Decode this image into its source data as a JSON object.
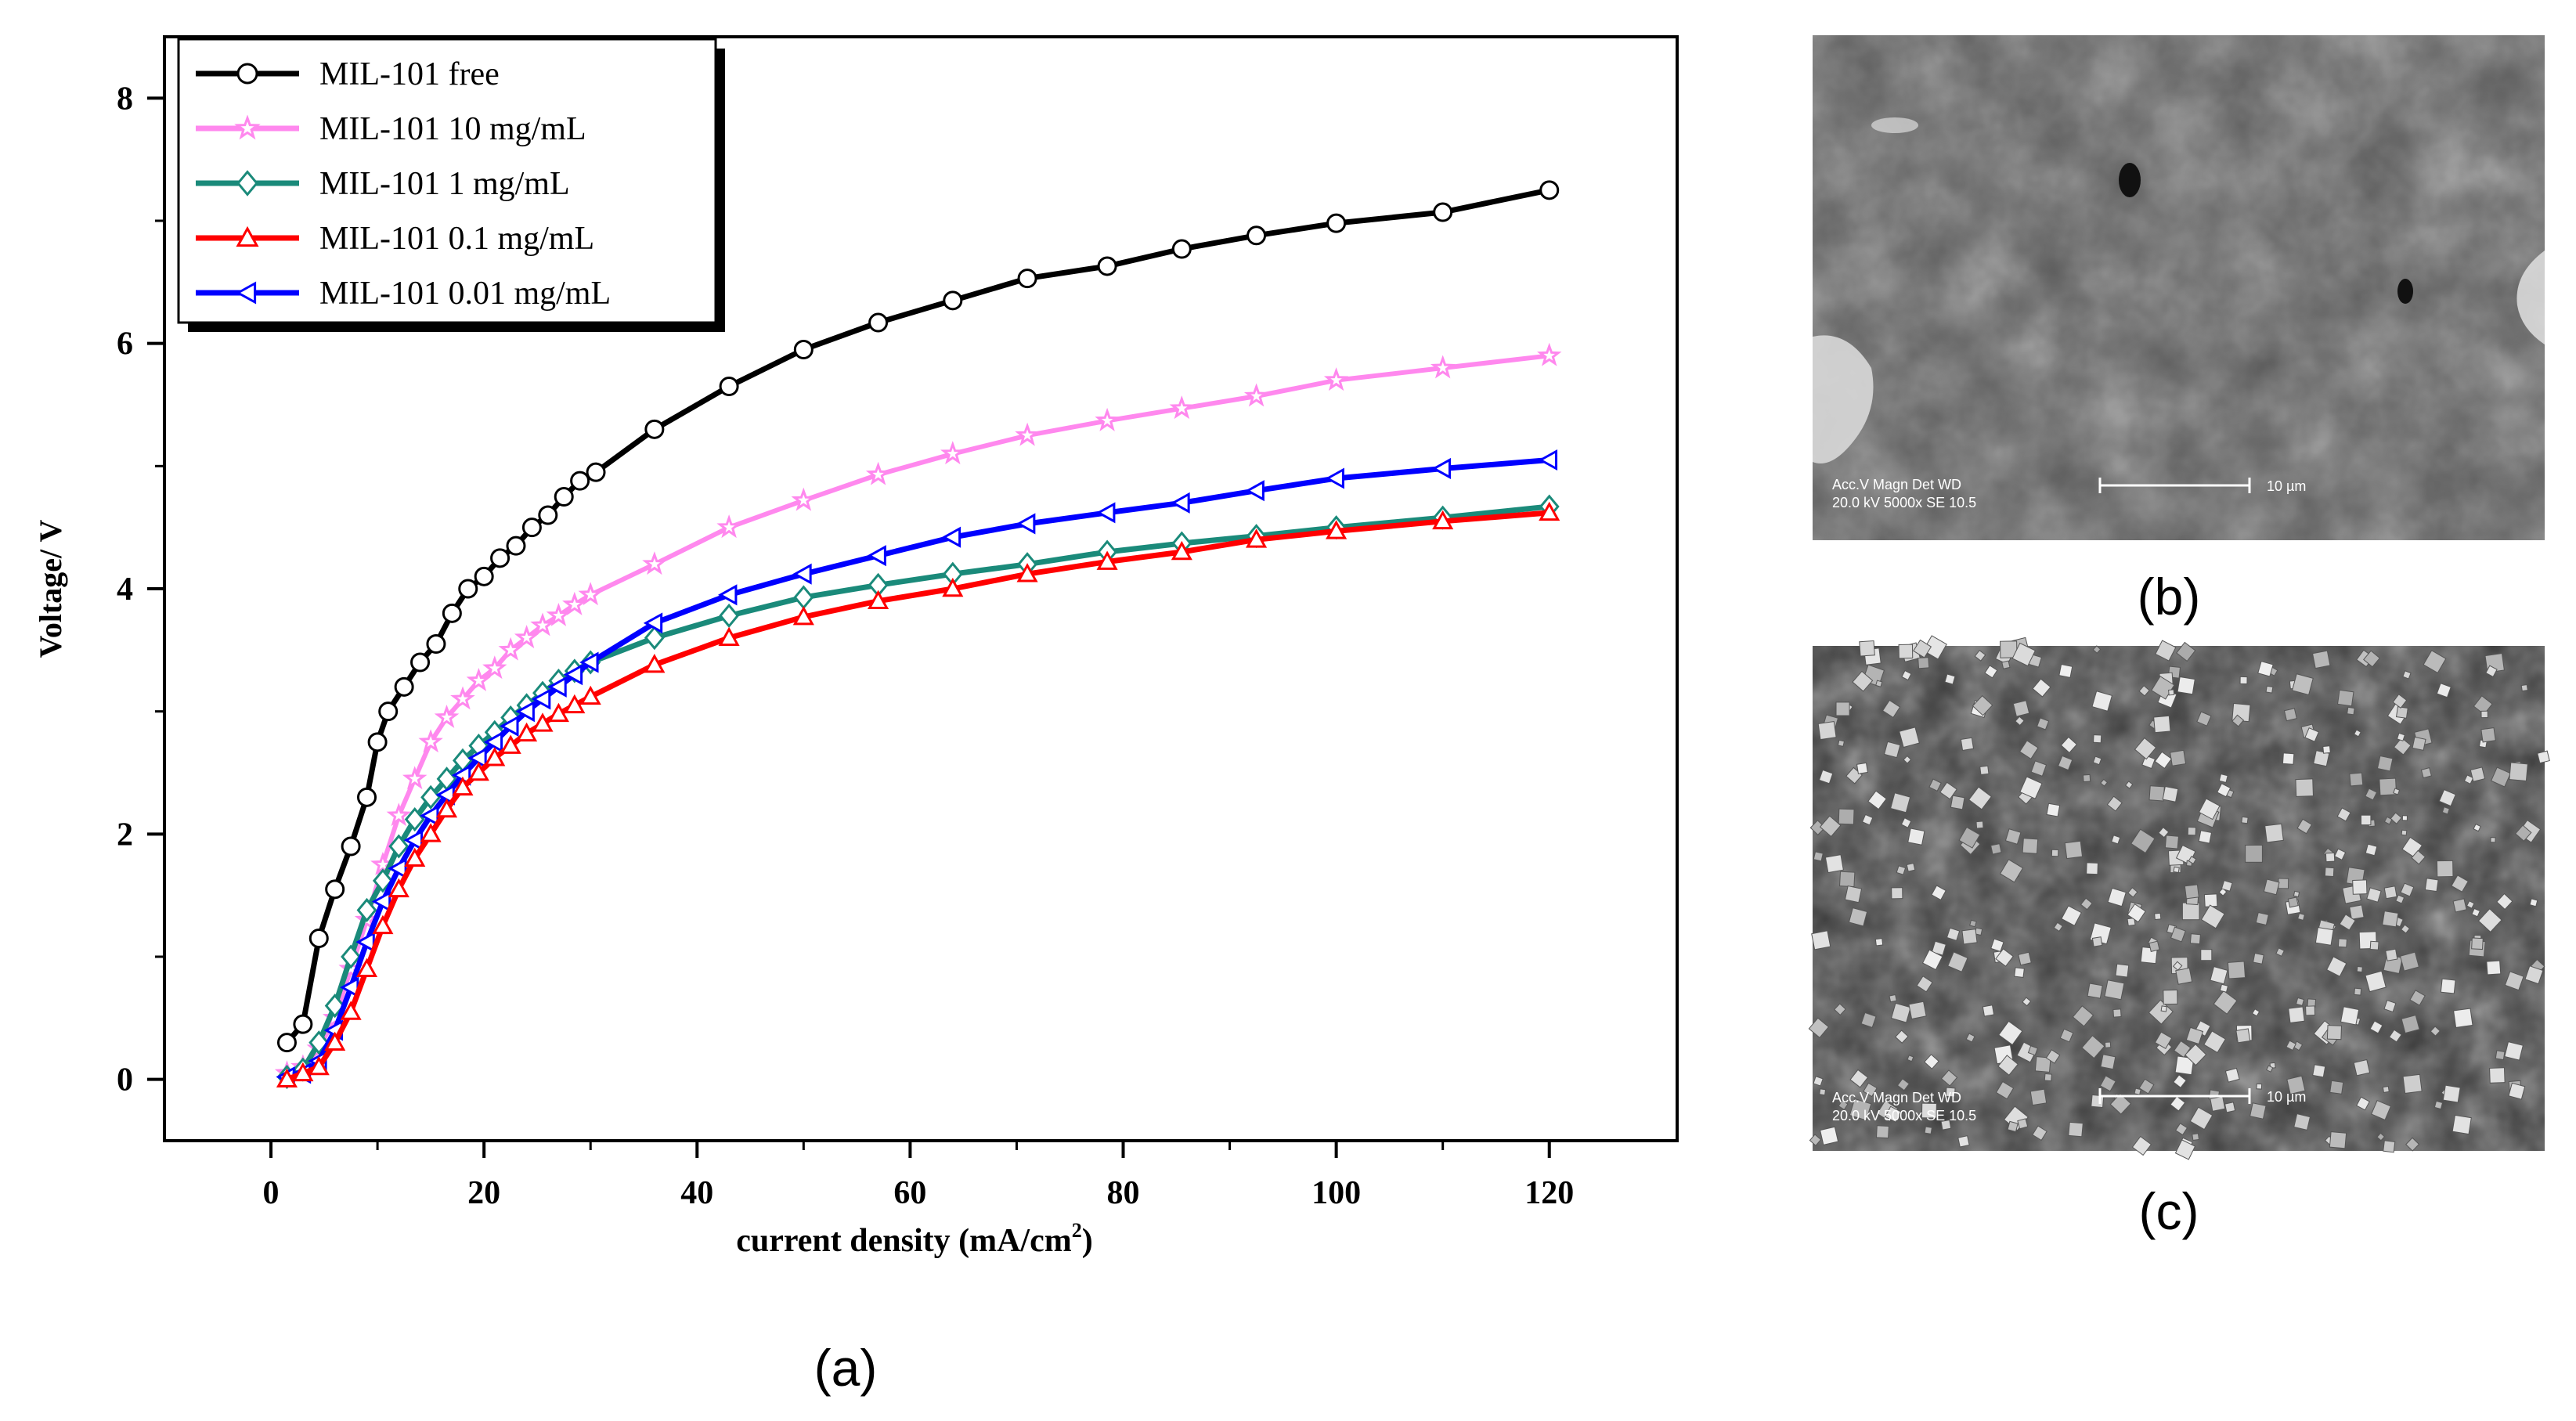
{
  "panel_labels": {
    "a": "(a)",
    "b": "(b)",
    "c": "(c)"
  },
  "sem_b": {
    "info_line1": "Acc.V   Magn   Det  WD",
    "info_line2": "20.0 kV 5000x  SE   10.5",
    "scale_label": "10 µm"
  },
  "sem_c": {
    "info_line1": "Acc.V   Magn   Det  WD",
    "info_line2": "20.0 kV 5000x  SE   10.5",
    "scale_label": "10 µm"
  },
  "chart_data": {
    "type": "line",
    "title": "",
    "xlabel_main": "current density  (mA/cm",
    "xlabel_sup": "2",
    "xlabel_end": ")",
    "ylabel": "Voltage/ V",
    "xlim": [
      -10,
      132
    ],
    "ylim": [
      -0.5,
      8.5
    ],
    "xticks": [
      0,
      20,
      40,
      60,
      80,
      100,
      120
    ],
    "yticks": [
      0,
      2,
      4,
      6,
      8
    ],
    "legend_position": "top-left",
    "series": [
      {
        "name": "MIL-101 free",
        "color": "#000000",
        "marker": "circle",
        "x": [
          1.5,
          3,
          4.5,
          6,
          7.5,
          9,
          10,
          11,
          12.5,
          14,
          15.5,
          17,
          18.5,
          20,
          21.5,
          23,
          24.5,
          26,
          27.5,
          29,
          30.5,
          36,
          43,
          50,
          57,
          64,
          71,
          78.5,
          85.5,
          92.5,
          100,
          110,
          120
        ],
        "y": [
          0.3,
          0.45,
          1.15,
          1.55,
          1.9,
          2.3,
          2.75,
          3.0,
          3.2,
          3.4,
          3.55,
          3.8,
          4.0,
          4.1,
          4.25,
          4.35,
          4.5,
          4.6,
          4.75,
          4.88,
          4.95,
          5.3,
          5.65,
          5.95,
          6.17,
          6.35,
          6.53,
          6.63,
          6.77,
          6.88,
          6.98,
          7.07,
          7.25
        ]
      },
      {
        "name": "MIL-101 10 mg/mL",
        "color": "#ff88ee",
        "marker": "star",
        "x": [
          1.5,
          3,
          4.5,
          6,
          7.5,
          9,
          10.5,
          12,
          13.5,
          15,
          16.5,
          18,
          19.5,
          21,
          22.5,
          24,
          25.5,
          27,
          28.5,
          30,
          36,
          43,
          50,
          57,
          64,
          71,
          78.5,
          85.5,
          92.5,
          100,
          110,
          120
        ],
        "y": [
          0.05,
          0.1,
          0.25,
          0.5,
          0.9,
          1.3,
          1.75,
          2.15,
          2.45,
          2.75,
          2.95,
          3.1,
          3.25,
          3.35,
          3.5,
          3.6,
          3.7,
          3.78,
          3.87,
          3.95,
          4.2,
          4.5,
          4.72,
          4.93,
          5.1,
          5.25,
          5.37,
          5.47,
          5.57,
          5.7,
          5.8,
          5.9
        ]
      },
      {
        "name": "MIL-101 1   mg/mL",
        "color": "#1a8a7a",
        "marker": "diamond",
        "x": [
          1.5,
          3,
          4.5,
          6,
          7.5,
          9,
          10.5,
          12,
          13.5,
          15,
          16.5,
          18,
          19.5,
          21,
          22.5,
          24,
          25.5,
          27,
          28.5,
          30,
          36,
          43,
          50,
          57,
          64,
          71,
          78.5,
          85.5,
          92.5,
          100,
          110,
          120
        ],
        "y": [
          0.02,
          0.08,
          0.3,
          0.6,
          1.0,
          1.38,
          1.62,
          1.9,
          2.12,
          2.3,
          2.45,
          2.6,
          2.72,
          2.83,
          2.95,
          3.05,
          3.15,
          3.25,
          3.33,
          3.4,
          3.6,
          3.78,
          3.93,
          4.03,
          4.12,
          4.2,
          4.3,
          4.37,
          4.43,
          4.5,
          4.58,
          4.67
        ]
      },
      {
        "name": "MIL-101 0.1 mg/mL",
        "color": "#ff0000",
        "marker": "triangle",
        "x": [
          1.5,
          3,
          4.5,
          6,
          7.5,
          9,
          10.5,
          12,
          13.5,
          15,
          16.5,
          18,
          19.5,
          21,
          22.5,
          24,
          25.5,
          27,
          28.5,
          30,
          36,
          43,
          50,
          57,
          64,
          71,
          78.5,
          85.5,
          92.5,
          100,
          110,
          120
        ],
        "y": [
          0.0,
          0.05,
          0.1,
          0.3,
          0.55,
          0.9,
          1.25,
          1.55,
          1.8,
          2.0,
          2.2,
          2.38,
          2.5,
          2.62,
          2.72,
          2.82,
          2.9,
          2.98,
          3.05,
          3.12,
          3.38,
          3.6,
          3.77,
          3.9,
          4.0,
          4.12,
          4.22,
          4.3,
          4.4,
          4.47,
          4.55,
          4.62
        ]
      },
      {
        "name": "MIL-101 0.01 mg/mL",
        "color": "#0000ff",
        "marker": "triangle-left",
        "x": [
          1.5,
          3,
          4.5,
          6,
          7.5,
          9,
          10.5,
          12,
          13.5,
          15,
          16.5,
          18,
          19.5,
          21,
          22.5,
          24,
          25.5,
          27,
          28.5,
          30,
          36,
          43,
          50,
          57,
          64,
          71,
          78.5,
          85.5,
          92.5,
          100,
          110,
          120
        ],
        "y": [
          0.02,
          0.05,
          0.15,
          0.4,
          0.75,
          1.12,
          1.45,
          1.72,
          1.95,
          2.15,
          2.32,
          2.48,
          2.62,
          2.75,
          2.88,
          3.0,
          3.1,
          3.2,
          3.3,
          3.4,
          3.72,
          3.95,
          4.12,
          4.27,
          4.42,
          4.53,
          4.62,
          4.7,
          4.8,
          4.9,
          4.98,
          5.05
        ]
      }
    ]
  }
}
